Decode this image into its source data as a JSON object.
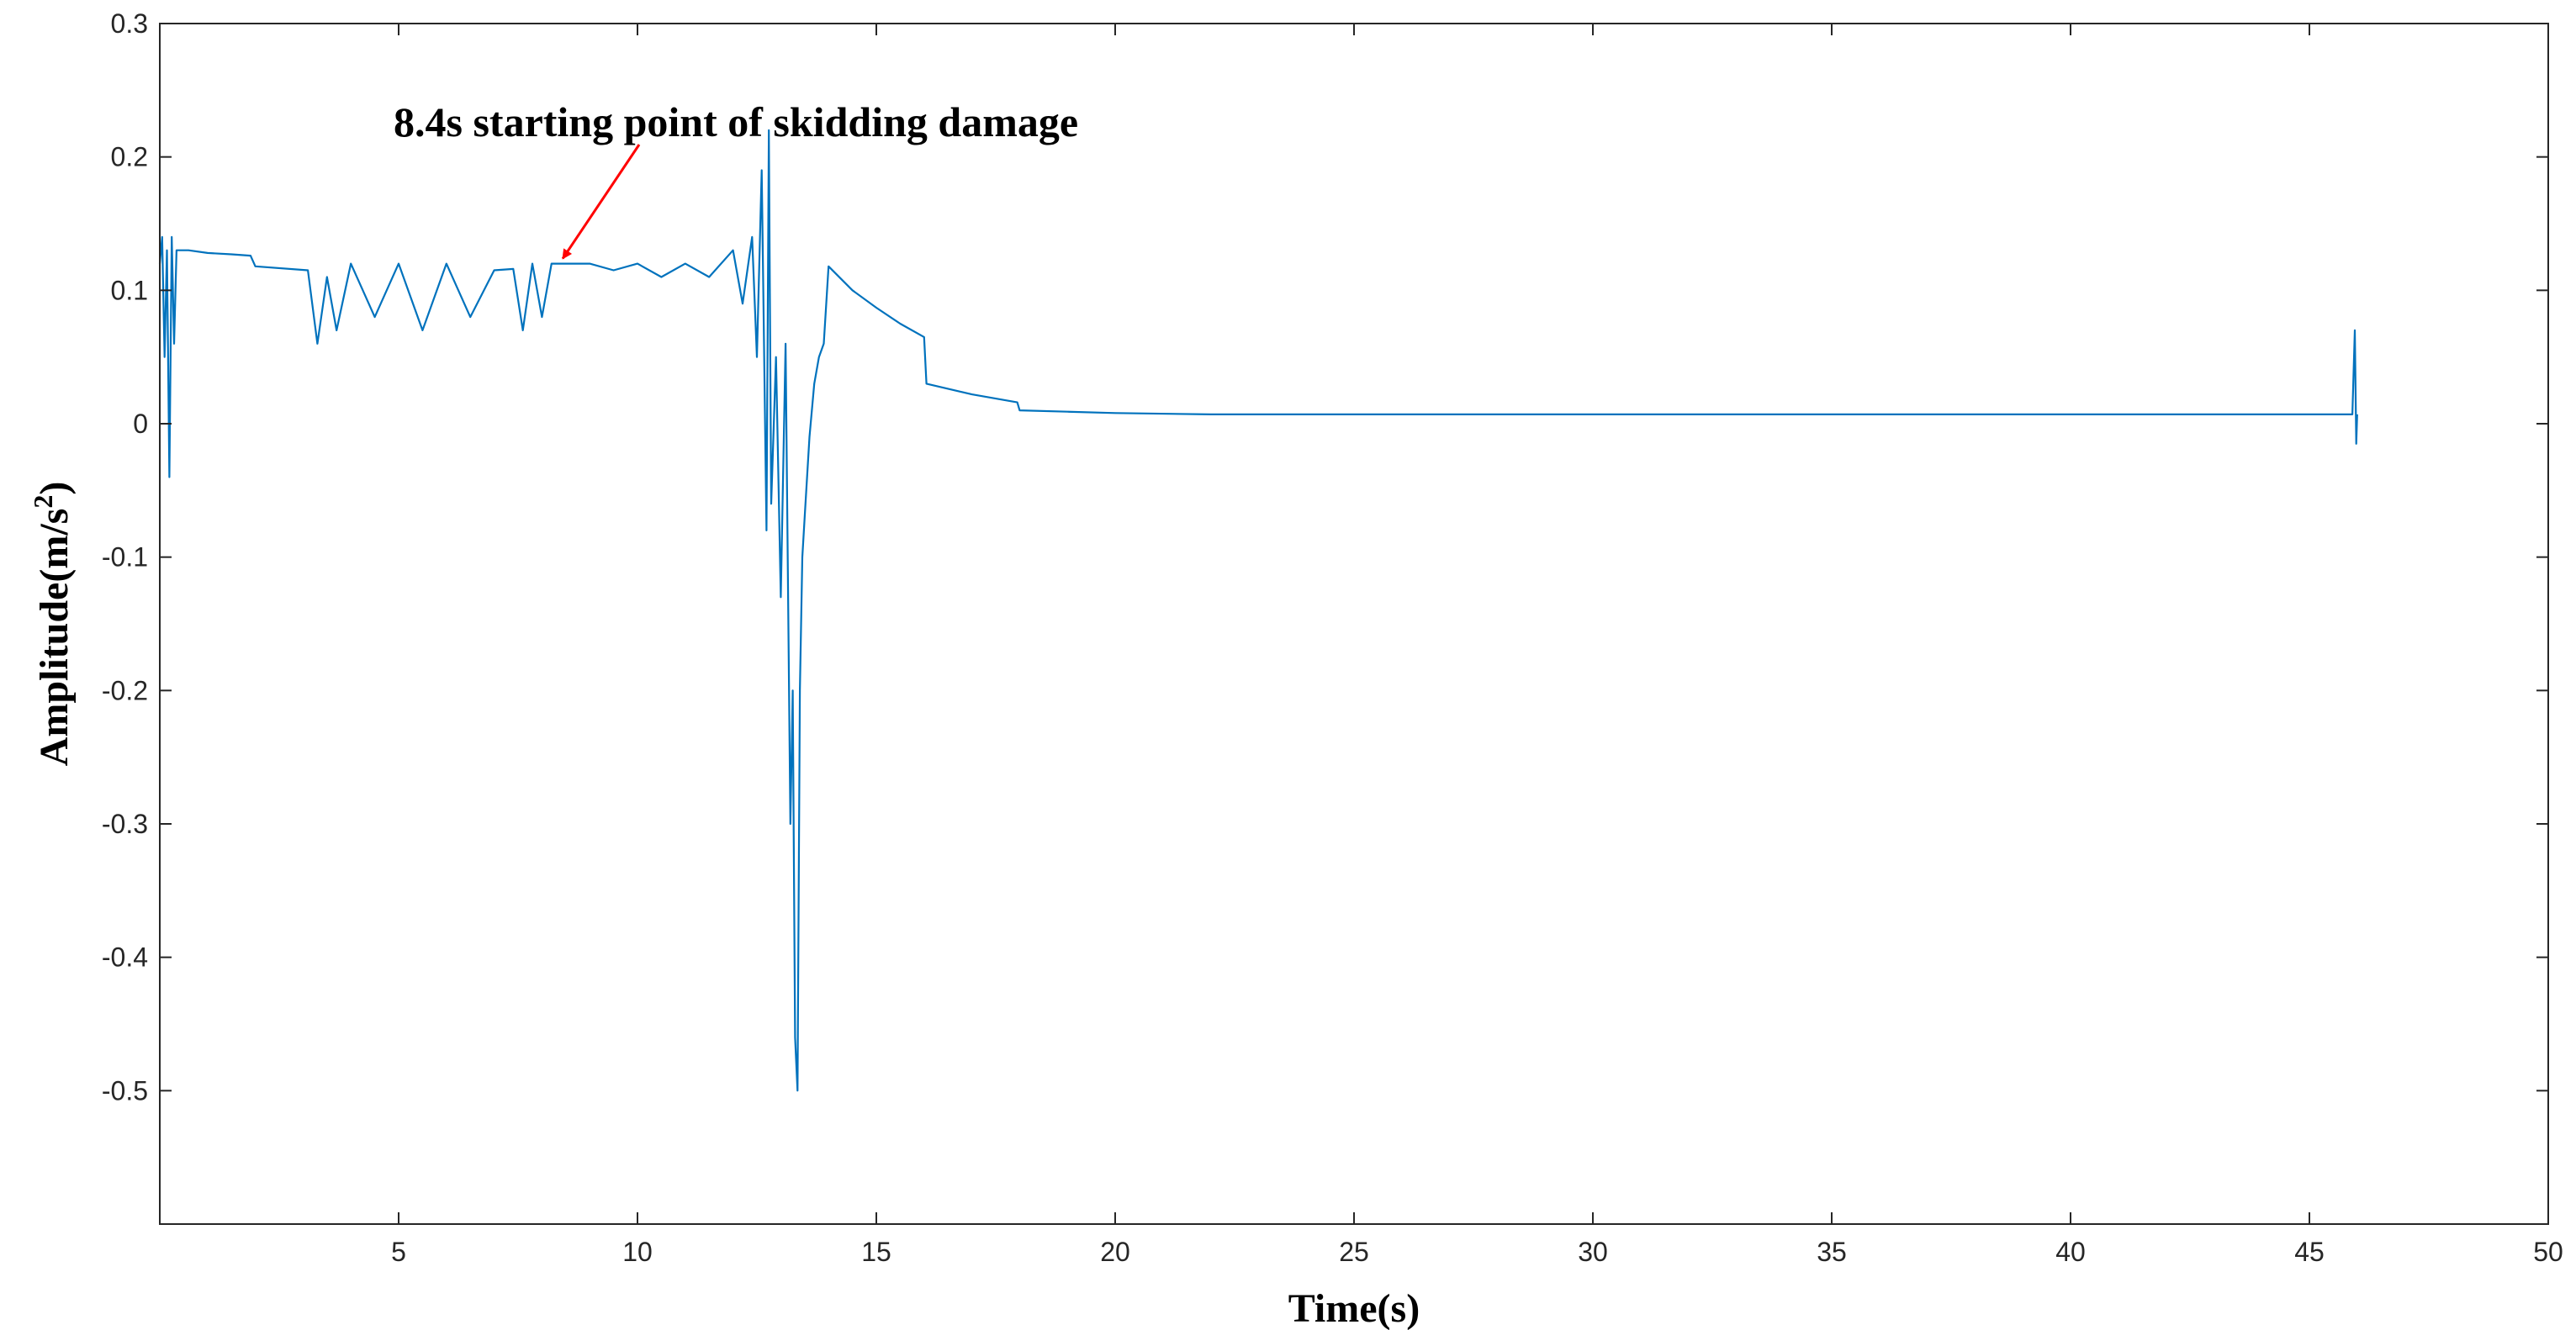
{
  "chart_data": {
    "type": "line",
    "title": "",
    "xlabel": "Time(s)",
    "ylabel_base": "Amplitude(m/s",
    "ylabel_sup": "2",
    "ylabel_close": ")",
    "xlim": [
      0,
      50
    ],
    "ylim": [
      -0.6,
      0.3
    ],
    "xticks": [
      5,
      10,
      15,
      20,
      25,
      30,
      35,
      40,
      45,
      50
    ],
    "xtick_labels": [
      "5",
      "10",
      "15",
      "20",
      "25",
      "30",
      "35",
      "40",
      "45",
      "50"
    ],
    "yticks": [
      0.3,
      0.2,
      0.1,
      0,
      -0.1,
      -0.2,
      -0.3,
      -0.4,
      -0.5
    ],
    "ytick_labels": [
      "0.3",
      "0.2",
      "0.1",
      "0",
      "-0.1",
      "-0.2",
      "-0.3",
      "-0.4",
      "-0.5"
    ],
    "grid": false,
    "series_color": "#0072BD",
    "annotation": {
      "text": "8.4s starting point of skidding damage",
      "point": [
        8.4,
        0.12
      ],
      "color": "#FF0000"
    },
    "series": [
      {
        "x": [
          0,
          0.05,
          0.1,
          0.15,
          0.2,
          0.25,
          0.3,
          0.35,
          0.4,
          0.5,
          0.6,
          1,
          1.5,
          1.9,
          2.0,
          3.1,
          3.3,
          3.5,
          3.7,
          4.0,
          4.5,
          5.0,
          5.5,
          6.0,
          6.5,
          7.0,
          7.4,
          7.6,
          7.8,
          8.0,
          8.2,
          8.4,
          8.6,
          9.0,
          9.5,
          10.0,
          10.5,
          11.0,
          11.5,
          12.0,
          12.2,
          12.4,
          12.5,
          12.6,
          12.7,
          12.75,
          12.8,
          12.9,
          13.0,
          13.1,
          13.2,
          13.25,
          13.3,
          13.35,
          13.4,
          13.45,
          13.5,
          13.6,
          13.7,
          13.8,
          13.9,
          14.0,
          14.5,
          15.0,
          15.5,
          16.0,
          16.05,
          17.0,
          17.95,
          18.0,
          19.0,
          20.0,
          22.0,
          25.0,
          30.0,
          35.0,
          40.0,
          45.0,
          45.9,
          45.95,
          45.98,
          46.0
        ],
        "y": [
          0.12,
          0.14,
          0.05,
          0.13,
          -0.04,
          0.14,
          0.06,
          0.13,
          0.13,
          0.13,
          0.13,
          0.128,
          0.127,
          0.126,
          0.118,
          0.115,
          0.06,
          0.11,
          0.07,
          0.12,
          0.08,
          0.12,
          0.07,
          0.12,
          0.08,
          0.115,
          0.116,
          0.07,
          0.12,
          0.08,
          0.12,
          0.12,
          0.12,
          0.12,
          0.115,
          0.12,
          0.11,
          0.12,
          0.11,
          0.13,
          0.09,
          0.14,
          0.05,
          0.19,
          -0.08,
          0.22,
          -0.06,
          0.05,
          -0.13,
          0.06,
          -0.3,
          -0.2,
          -0.46,
          -0.5,
          -0.2,
          -0.1,
          -0.07,
          -0.01,
          0.03,
          0.05,
          0.06,
          0.118,
          0.1,
          0.087,
          0.075,
          0.065,
          0.03,
          0.022,
          0.016,
          0.01,
          0.009,
          0.008,
          0.007,
          0.007,
          0.007,
          0.007,
          0.007,
          0.007,
          0.007,
          0.07,
          -0.015,
          0.007
        ]
      }
    ]
  }
}
